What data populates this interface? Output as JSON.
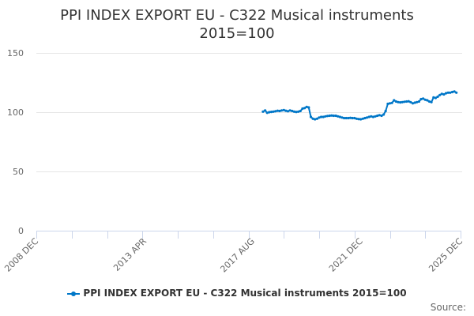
{
  "title": {
    "line1": "PPI INDEX EXPORT EU - C322 Musical instruments",
    "line2": "2015=100"
  },
  "legend": {
    "label": "PPI INDEX EXPORT EU - C322 Musical instruments 2015=100"
  },
  "source_label": "Source:",
  "colors": {
    "series": "#0077c8",
    "grid": "#e6e6e6",
    "axis": "#ccd6eb",
    "text": "#333333",
    "tick_text": "#666666"
  },
  "chart_data": {
    "type": "line",
    "title": "PPI INDEX EXPORT EU - C322 Musical instruments 2015=100",
    "xlabel": "",
    "ylabel": "",
    "ylim": [
      0,
      150
    ],
    "yticks": [
      0,
      50,
      100,
      150
    ],
    "xlim": [
      "2008 DEC",
      "2025 DEC"
    ],
    "xtick_labels": [
      "2008 DEC",
      "2013 APR",
      "2017 AUG",
      "2021 DEC",
      "2025 DEC"
    ],
    "grid": true,
    "legend_position": "bottom",
    "series": [
      {
        "name": "PPI INDEX EXPORT EU - C322 Musical instruments 2015=100",
        "start": "2018-01",
        "frequency": "monthly",
        "values": [
          100.5,
          101.5,
          99.5,
          100.0,
          100.3,
          100.5,
          100.8,
          101.2,
          101.0,
          101.5,
          101.8,
          101.2,
          100.8,
          101.5,
          101.0,
          100.5,
          100.2,
          100.5,
          101.0,
          103.0,
          103.5,
          104.5,
          104.0,
          96.0,
          94.5,
          94.0,
          94.5,
          95.5,
          96.0,
          96.0,
          96.5,
          96.8,
          97.0,
          97.2,
          97.0,
          97.0,
          96.5,
          96.0,
          95.5,
          95.0,
          95.0,
          95.0,
          95.2,
          95.0,
          95.0,
          94.5,
          94.2,
          94.0,
          94.5,
          95.0,
          95.5,
          96.0,
          96.5,
          96.0,
          96.5,
          97.0,
          97.5,
          97.0,
          98.0,
          101.0,
          107.0,
          107.5,
          107.8,
          110.0,
          109.0,
          108.5,
          108.3,
          108.5,
          108.8,
          109.0,
          109.2,
          108.5,
          107.5,
          108.0,
          108.5,
          109.0,
          111.0,
          111.5,
          110.5,
          110.0,
          109.0,
          108.5,
          112.5,
          112.0,
          113.0,
          114.5,
          115.5,
          115.0,
          116.0,
          116.5,
          116.5,
          117.0,
          117.5,
          116.5
        ]
      }
    ]
  }
}
